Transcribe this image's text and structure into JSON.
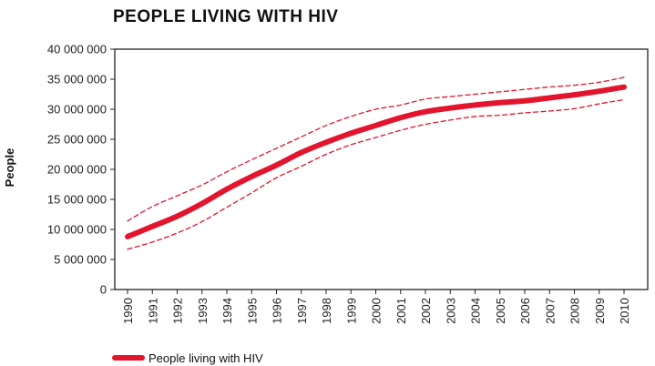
{
  "chart_data": {
    "type": "line",
    "title": "PEOPLE LIVING WITH HIV",
    "xlabel": "",
    "ylabel": "People",
    "x": [
      "1990",
      "1991",
      "1992",
      "1993",
      "1994",
      "1995",
      "1996",
      "1997",
      "1998",
      "1999",
      "2000",
      "2001",
      "2002",
      "2003",
      "2004",
      "2005",
      "2006",
      "2007",
      "2008",
      "2009",
      "2010"
    ],
    "ylim": [
      0,
      40000000
    ],
    "yticks": [
      0,
      5000000,
      10000000,
      15000000,
      20000000,
      25000000,
      30000000,
      35000000,
      40000000
    ],
    "ytick_labels": [
      "0",
      "5 000 000",
      "10 000 000",
      "15 000 000",
      "20 000 000",
      "25 000 000",
      "30 000 000",
      "35 000 000",
      "40 000 000"
    ],
    "series": [
      {
        "name": "People living with HIV",
        "style": "solid",
        "values": [
          8800000,
          10500000,
          12200000,
          14300000,
          16700000,
          18800000,
          20700000,
          22800000,
          24500000,
          26000000,
          27300000,
          28600000,
          29600000,
          30200000,
          30700000,
          31100000,
          31400000,
          31900000,
          32400000,
          33000000,
          33700000
        ]
      },
      {
        "style": "dashed",
        "values": [
          11400000,
          13800000,
          15600000,
          17400000,
          19600000,
          21600000,
          23500000,
          25400000,
          27300000,
          28800000,
          30000000,
          30700000,
          31700000,
          32100000,
          32500000,
          32900000,
          33300000,
          33700000,
          34000000,
          34500000,
          35300000
        ]
      },
      {
        "style": "dashed",
        "values": [
          6700000,
          7900000,
          9400000,
          11300000,
          13700000,
          16100000,
          18600000,
          20500000,
          22500000,
          24100000,
          25300000,
          26500000,
          27500000,
          28200000,
          28800000,
          29000000,
          29400000,
          29700000,
          30100000,
          30900000,
          31600000
        ]
      }
    ],
    "legend": {
      "position": "bottom-left",
      "entries": [
        "People living with HIV"
      ]
    },
    "grid": false,
    "line_color": "#e3142d"
  }
}
